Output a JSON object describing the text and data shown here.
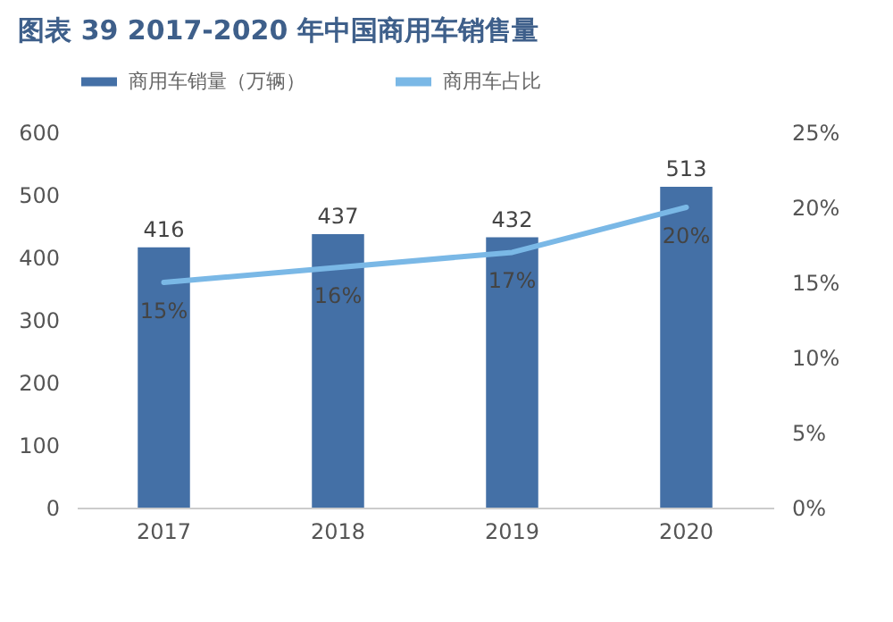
{
  "chart_data": {
    "type": "bar",
    "title": "图表 39 2017-2020 年中国商用车销售量",
    "categories": [
      "2017",
      "2018",
      "2019",
      "2020"
    ],
    "series": [
      {
        "name": "商用车销量（万辆）",
        "color": "#4470a6",
        "values": [
          416,
          437,
          432,
          513
        ]
      },
      {
        "name": "商用车占比",
        "type": "line",
        "axis": "y2",
        "color": "#7ab8e6",
        "values": [
          15,
          16,
          17,
          20
        ],
        "value_labels": [
          "15%",
          "16%",
          "17%",
          "20%"
        ]
      }
    ],
    "data_labels": true,
    "ylim": [
      0,
      600
    ],
    "yticks": [
      0,
      100,
      200,
      300,
      400,
      500,
      600
    ],
    "y2lim": [
      0,
      25
    ],
    "y2ticks": [
      {
        "value": 0,
        "label": "0%"
      },
      {
        "value": 5,
        "label": "5%"
      },
      {
        "value": 10,
        "label": "10%"
      },
      {
        "value": 15,
        "label": "15%"
      },
      {
        "value": 20,
        "label": "20%"
      },
      {
        "value": 25,
        "label": "25%"
      }
    ],
    "legend": "top"
  }
}
